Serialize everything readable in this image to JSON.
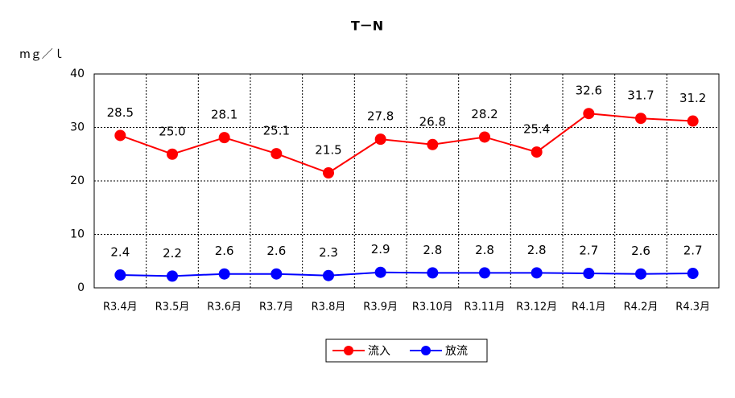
{
  "chart_data": {
    "type": "line",
    "title": "T－N",
    "y_label": "mｇ／ｌ",
    "categories": [
      "R3.4月",
      "R3.5月",
      "R3.6月",
      "R3.7月",
      "R3.8月",
      "R3.9月",
      "R3.10月",
      "R3.11月",
      "R3.12月",
      "R4.1月",
      "R4.2月",
      "R4.3月"
    ],
    "series": [
      {
        "name": "流入",
        "color": "#ff0000",
        "values": [
          28.5,
          25.0,
          28.1,
          25.1,
          21.5,
          27.8,
          26.8,
          28.2,
          25.4,
          32.6,
          31.7,
          31.2
        ],
        "value_labels": [
          "28.5",
          "25.0",
          "28.1",
          "25.1",
          "21.5",
          "27.8",
          "26.8",
          "28.2",
          "25.4",
          "32.6",
          "31.7",
          "31.2"
        ]
      },
      {
        "name": "放流",
        "color": "#0000ff",
        "values": [
          2.4,
          2.2,
          2.6,
          2.6,
          2.3,
          2.9,
          2.8,
          2.8,
          2.8,
          2.7,
          2.6,
          2.7
        ],
        "value_labels": [
          "2.4",
          "2.2",
          "2.6",
          "2.6",
          "2.3",
          "2.9",
          "2.8",
          "2.8",
          "2.8",
          "2.7",
          "2.6",
          "2.7"
        ]
      }
    ],
    "ylim": [
      0,
      40
    ],
    "yticks": [
      0,
      10,
      20,
      30,
      40
    ],
    "grid": true,
    "legend": "bottom"
  }
}
